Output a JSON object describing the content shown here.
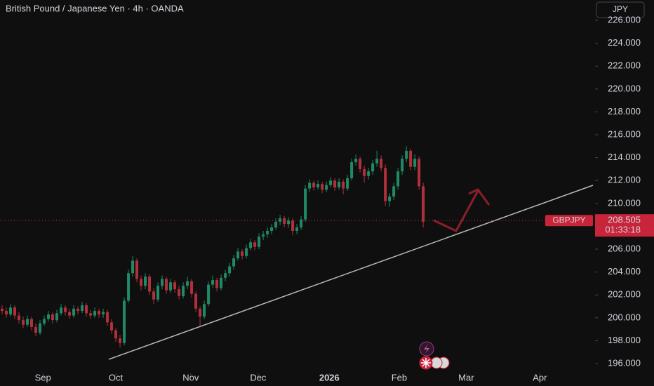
{
  "chart_data": {
    "type": "candlestick",
    "title": "British Pound / Japanese Yen · 4h · OANDA",
    "currency": "JPY",
    "symbol": "GBPJPY",
    "last_price": {
      "value": 208.505,
      "label": "208.505"
    },
    "countdown": "01:33:18",
    "up_color": "#1f8a66",
    "down_color": "#b2303a",
    "ylim": [
      195.39,
      227.78
    ],
    "yticks": [
      {
        "value": 196,
        "label": "196.000"
      },
      {
        "value": 198,
        "label": "198.000"
      },
      {
        "value": 200,
        "label": "200.000"
      },
      {
        "value": 202,
        "label": "202.000"
      },
      {
        "value": 204,
        "label": "204.000"
      },
      {
        "value": 206,
        "label": "206.000"
      },
      {
        "value": 208,
        "label": "208.000"
      },
      {
        "value": 210,
        "label": "210.000"
      },
      {
        "value": 212,
        "label": "212.000"
      },
      {
        "value": 214,
        "label": "214.000"
      },
      {
        "value": 216,
        "label": "216.000"
      },
      {
        "value": 218,
        "label": "218.000"
      },
      {
        "value": 220,
        "label": "220.000"
      },
      {
        "value": 222,
        "label": "222.000"
      },
      {
        "value": 224,
        "label": "224.000"
      },
      {
        "value": 226,
        "label": "226.000"
      }
    ],
    "xlim": [
      -0.5,
      140.8
    ],
    "xticks": [
      {
        "value": 9.7,
        "label": "Sep"
      },
      {
        "value": 27,
        "label": "Oct"
      },
      {
        "value": 44.8,
        "label": "Nov"
      },
      {
        "value": 60.8,
        "label": "Dec"
      },
      {
        "value": 77.7,
        "label": "2026"
      },
      {
        "value": 94.3,
        "label": "Feb"
      },
      {
        "value": 110.2,
        "label": "Mar"
      },
      {
        "value": 127.7,
        "label": "Apr"
      }
    ],
    "ohlc": [
      [
        200.8,
        201.1,
        200.3,
        200.6
      ],
      [
        200.6,
        200.9,
        200.0,
        200.3
      ],
      [
        200.3,
        201.2,
        200.1,
        200.9
      ],
      [
        200.9,
        201.1,
        199.9,
        200.2
      ],
      [
        200.2,
        200.5,
        199.5,
        199.8
      ],
      [
        199.8,
        200.1,
        199.1,
        199.4
      ],
      [
        199.4,
        200.2,
        199.2,
        199.9
      ],
      [
        199.9,
        200.1,
        198.9,
        199.2
      ],
      [
        199.2,
        199.5,
        198.4,
        198.7
      ],
      [
        198.7,
        199.8,
        198.5,
        199.5
      ],
      [
        199.5,
        200.2,
        199.3,
        199.9
      ],
      [
        199.9,
        200.6,
        199.7,
        200.3
      ],
      [
        200.3,
        200.5,
        199.5,
        199.8
      ],
      [
        199.8,
        200.7,
        199.6,
        200.4
      ],
      [
        200.4,
        201.2,
        200.2,
        200.9
      ],
      [
        200.9,
        201.1,
        200.2,
        200.5
      ],
      [
        200.5,
        200.8,
        199.9,
        200.2
      ],
      [
        200.2,
        201.1,
        200.0,
        200.8
      ],
      [
        200.8,
        201.0,
        200.3,
        200.6
      ],
      [
        200.6,
        201.4,
        200.4,
        201.1
      ],
      [
        201.1,
        201.3,
        200.1,
        200.4
      ],
      [
        200.4,
        200.7,
        199.9,
        200.2
      ],
      [
        200.2,
        200.9,
        200.0,
        200.6
      ],
      [
        200.6,
        200.8,
        200.0,
        200.3
      ],
      [
        200.3,
        200.8,
        200.0,
        200.5
      ],
      [
        200.5,
        200.7,
        199.3,
        199.6
      ],
      [
        199.6,
        199.9,
        198.6,
        198.9
      ],
      [
        198.9,
        199.1,
        197.9,
        198.2
      ],
      [
        198.2,
        198.5,
        197.4,
        197.8
      ],
      [
        197.8,
        201.8,
        197.6,
        201.5
      ],
      [
        201.5,
        204.2,
        201.3,
        203.9
      ],
      [
        203.9,
        205.4,
        203.6,
        205.0
      ],
      [
        205.0,
        205.2,
        203.1,
        203.4
      ],
      [
        203.4,
        203.7,
        202.4,
        202.8
      ],
      [
        202.8,
        203.9,
        202.5,
        203.6
      ],
      [
        203.6,
        203.8,
        202.0,
        202.3
      ],
      [
        202.3,
        202.6,
        201.2,
        201.6
      ],
      [
        201.6,
        203.1,
        201.4,
        202.8
      ],
      [
        202.8,
        203.7,
        202.5,
        203.4
      ],
      [
        203.4,
        203.6,
        202.1,
        202.4
      ],
      [
        202.4,
        203.4,
        202.2,
        203.1
      ],
      [
        203.1,
        203.3,
        202.2,
        202.5
      ],
      [
        202.5,
        202.8,
        201.6,
        201.9
      ],
      [
        201.9,
        203.1,
        201.7,
        202.8
      ],
      [
        202.8,
        203.6,
        202.5,
        203.2
      ],
      [
        203.2,
        203.4,
        201.8,
        202.1
      ],
      [
        202.1,
        202.3,
        200.5,
        200.8
      ],
      [
        200.8,
        201.0,
        199.3,
        200.1
      ],
      [
        200.1,
        201.5,
        199.9,
        201.2
      ],
      [
        201.2,
        203.2,
        201.0,
        202.9
      ],
      [
        202.9,
        203.7,
        202.6,
        203.3
      ],
      [
        203.3,
        203.5,
        202.3,
        202.6
      ],
      [
        202.6,
        203.8,
        202.4,
        203.5
      ],
      [
        203.5,
        204.2,
        203.2,
        203.9
      ],
      [
        203.9,
        204.8,
        203.6,
        204.5
      ],
      [
        204.5,
        205.5,
        204.2,
        205.2
      ],
      [
        205.2,
        206.1,
        205.0,
        205.8
      ],
      [
        205.8,
        206.0,
        205.1,
        205.4
      ],
      [
        205.4,
        206.4,
        205.2,
        206.1
      ],
      [
        206.1,
        206.9,
        205.9,
        206.6
      ],
      [
        206.6,
        206.8,
        205.9,
        206.2
      ],
      [
        206.2,
        207.4,
        206.0,
        207.1
      ],
      [
        207.1,
        207.6,
        206.8,
        207.3
      ],
      [
        207.3,
        207.9,
        207.0,
        207.6
      ],
      [
        207.6,
        208.2,
        207.3,
        207.9
      ],
      [
        207.9,
        208.7,
        207.7,
        208.4
      ],
      [
        208.4,
        209.0,
        208.1,
        208.7
      ],
      [
        208.7,
        208.9,
        207.9,
        208.2
      ],
      [
        208.2,
        208.8,
        207.9,
        208.5
      ],
      [
        208.5,
        208.7,
        207.2,
        207.6
      ],
      [
        207.6,
        208.2,
        207.3,
        207.9
      ],
      [
        207.9,
        208.9,
        207.7,
        208.6
      ],
      [
        208.6,
        211.6,
        208.4,
        211.3
      ],
      [
        211.3,
        212.1,
        211.0,
        211.8
      ],
      [
        211.8,
        212.0,
        211.1,
        211.4
      ],
      [
        211.4,
        212.0,
        211.2,
        211.7
      ],
      [
        211.7,
        211.9,
        210.9,
        211.2
      ],
      [
        211.2,
        211.9,
        211.0,
        211.6
      ],
      [
        211.6,
        212.3,
        211.4,
        212.0
      ],
      [
        212.0,
        212.2,
        211.1,
        211.4
      ],
      [
        211.4,
        212.2,
        211.2,
        211.9
      ],
      [
        211.9,
        212.1,
        210.8,
        211.3
      ],
      [
        211.3,
        212.5,
        211.1,
        212.2
      ],
      [
        212.2,
        213.9,
        212.0,
        213.6
      ],
      [
        213.6,
        214.3,
        213.3,
        213.9
      ],
      [
        213.9,
        214.1,
        212.7,
        213.0
      ],
      [
        213.0,
        213.3,
        211.8,
        212.4
      ],
      [
        212.4,
        213.1,
        212.1,
        212.8
      ],
      [
        212.8,
        213.8,
        212.5,
        213.5
      ],
      [
        213.5,
        214.6,
        213.2,
        213.9
      ],
      [
        213.9,
        214.2,
        212.8,
        213.1
      ],
      [
        213.1,
        213.4,
        209.8,
        210.2
      ],
      [
        210.2,
        210.9,
        209.7,
        210.6
      ],
      [
        210.6,
        211.8,
        210.3,
        211.5
      ],
      [
        211.5,
        213.1,
        211.2,
        212.8
      ],
      [
        212.8,
        214.2,
        212.5,
        213.9
      ],
      [
        213.9,
        215.0,
        213.6,
        214.6
      ],
      [
        214.6,
        214.8,
        212.9,
        213.2
      ],
      [
        213.2,
        214.3,
        212.9,
        213.9
      ],
      [
        213.9,
        214.1,
        211.2,
        211.5
      ],
      [
        211.5,
        211.8,
        207.9,
        208.4
      ]
    ]
  }
}
